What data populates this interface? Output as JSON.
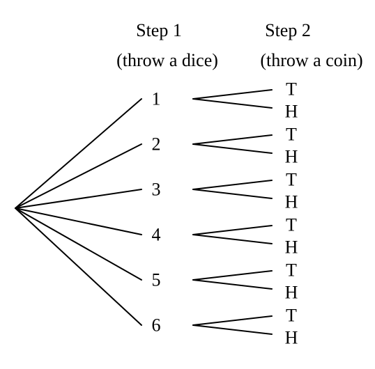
{
  "header": {
    "step1_title": "Step 1",
    "step1_subtitle": "(throw a dice)",
    "step2_title": "Step 2",
    "step2_subtitle": "(throw a coin)"
  },
  "dice_outcomes": [
    "1",
    "2",
    "3",
    "4",
    "5",
    "6"
  ],
  "coin_outcomes": [
    "T",
    "H"
  ],
  "colors": {
    "line": "#000000",
    "text": "#000000",
    "background": "#ffffff"
  }
}
